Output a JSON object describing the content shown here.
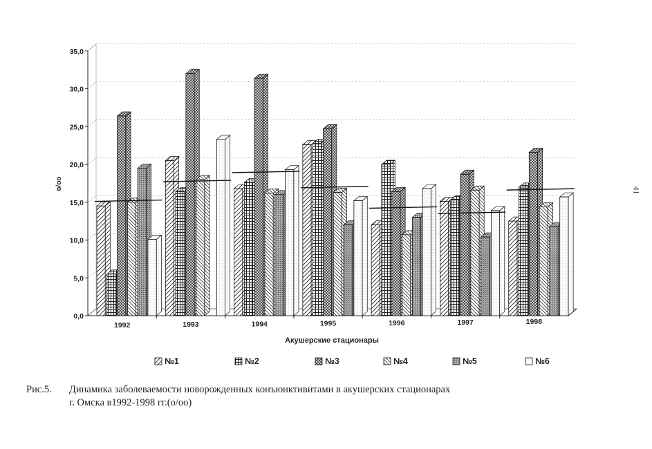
{
  "page_number": "41",
  "caption": {
    "label": "Рис.5.",
    "line1": "Динамика заболеваемости новорожденных конъюнктивитами в акушерских стационарах",
    "line2": "г. Омска в1992-1998 гг.(о/оо)"
  },
  "chart_data": {
    "type": "bar",
    "categories": [
      "1992",
      "1993",
      "1994",
      "1995",
      "1996",
      "1997",
      "1998"
    ],
    "ylabel": "о/оо",
    "xlabel": "Акушерские стационары",
    "ylim": [
      0,
      35
    ],
    "yticks": [
      "0,0",
      "5,0",
      "10,0",
      "15,0",
      "20,0",
      "25,0",
      "30,0",
      "35,0"
    ],
    "grid": true,
    "legend_position": "bottom",
    "series": [
      {
        "name": "№1",
        "values": [
          14.5,
          20.5,
          16.8,
          22.6,
          12.0,
          15.1,
          12.5
        ]
      },
      {
        "name": "№2",
        "values": [
          5.5,
          16.4,
          17.6,
          22.8,
          20.0,
          15.3,
          17.0
        ]
      },
      {
        "name": "№3",
        "values": [
          26.4,
          32.0,
          31.4,
          24.7,
          16.4,
          18.7,
          21.6
        ]
      },
      {
        "name": "№4",
        "values": [
          15.0,
          18.0,
          16.2,
          16.3,
          10.7,
          16.6,
          14.4
        ]
      },
      {
        "name": "№5",
        "values": [
          19.5,
          0.0,
          16.0,
          12.0,
          13.0,
          10.4,
          11.8
        ]
      },
      {
        "name": "№6",
        "values": [
          10.1,
          23.3,
          19.3,
          15.2,
          16.8,
          13.9,
          15.7
        ]
      }
    ],
    "averages": [
      15.2,
      17.8,
      19.0,
      17.0,
      14.3,
      13.6,
      16.7
    ]
  }
}
